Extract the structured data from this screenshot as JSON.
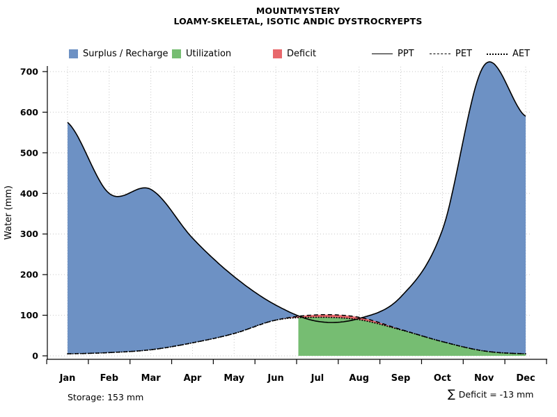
{
  "chart_data": {
    "type": "area",
    "title": "MOUNTMYSTERY",
    "subtitle": "LOAMY-SKELETAL, ISOTIC ANDIC DYSTROCRYEPTS",
    "xlabel": "",
    "ylabel": "Water (mm)",
    "ylim": [
      0,
      700
    ],
    "y_ticks": [
      0,
      100,
      200,
      300,
      400,
      500,
      600,
      700
    ],
    "months": [
      "Jan",
      "Feb",
      "Mar",
      "Apr",
      "May",
      "Jun",
      "Jul",
      "Aug",
      "Sep",
      "Oct",
      "Nov",
      "Dec"
    ],
    "grid": true,
    "legend_position": "top",
    "series": [
      {
        "name": "PPT",
        "style": "solid",
        "values": [
          575,
          400,
          410,
          290,
          195,
          125,
          85,
          92,
          145,
          310,
          715,
          590
        ]
      },
      {
        "name": "PET",
        "style": "dashed",
        "values": [
          5,
          8,
          15,
          32,
          55,
          88,
          101,
          95,
          65,
          35,
          12,
          5
        ]
      },
      {
        "name": "AET",
        "style": "dotted",
        "values": [
          5,
          8,
          15,
          32,
          55,
          88,
          95,
          89,
          64,
          35,
          12,
          5
        ]
      }
    ],
    "areas": [
      {
        "name": "Surplus / Recharge",
        "color": "#6d91c4",
        "rule": "between PET and PPT where PPT > PET"
      },
      {
        "name": "Utilization",
        "color": "#76bd72",
        "rule": "under AET after PPT falls below PET"
      },
      {
        "name": "Deficit",
        "color": "#e8686c",
        "rule": "between AET and PET where PET > AET"
      }
    ],
    "annotations": {
      "storage": "Storage: 153 mm",
      "sigma": "∑",
      "deficit_sum": "Deficit = -13 mm"
    }
  }
}
